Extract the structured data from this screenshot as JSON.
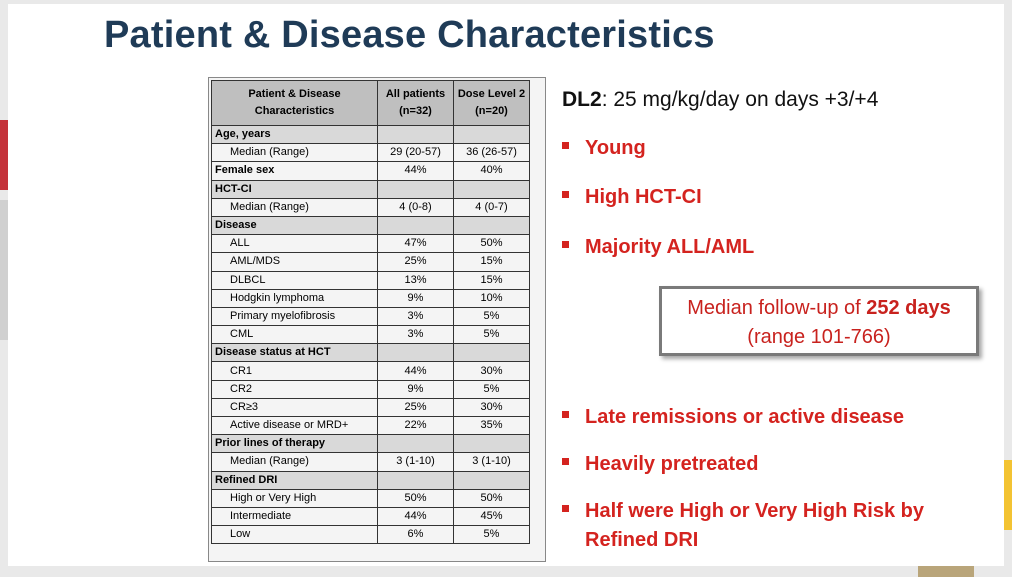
{
  "title": "Patient & Disease Characteristics",
  "table": {
    "headers": [
      "Patient & Disease Characteristics",
      "All patients (n=32)",
      "Dose Level 2 (n=20)"
    ],
    "rows": [
      {
        "type": "section",
        "label": "Age, years",
        "v1": "",
        "v2": ""
      },
      {
        "type": "sub",
        "label": "Median (Range)",
        "v1": "29 (20-57)",
        "v2": "36 (26-57)"
      },
      {
        "type": "boldrow",
        "label": "Female sex",
        "v1": "44%",
        "v2": "40%"
      },
      {
        "type": "section",
        "label": "HCT-CI",
        "v1": "",
        "v2": ""
      },
      {
        "type": "sub",
        "label": "Median (Range)",
        "v1": "4 (0-8)",
        "v2": "4 (0-7)"
      },
      {
        "type": "section",
        "label": "Disease",
        "v1": "",
        "v2": ""
      },
      {
        "type": "sub",
        "label": "ALL",
        "v1": "47%",
        "v2": "50%"
      },
      {
        "type": "sub",
        "label": "AML/MDS",
        "v1": "25%",
        "v2": "15%"
      },
      {
        "type": "sub",
        "label": "DLBCL",
        "v1": "13%",
        "v2": "15%"
      },
      {
        "type": "sub",
        "label": "Hodgkin lymphoma",
        "v1": "9%",
        "v2": "10%"
      },
      {
        "type": "sub",
        "label": "Primary myelofibrosis",
        "v1": "3%",
        "v2": "5%"
      },
      {
        "type": "sub",
        "label": "CML",
        "v1": "3%",
        "v2": "5%"
      },
      {
        "type": "section",
        "label": "Disease status at HCT",
        "v1": "",
        "v2": ""
      },
      {
        "type": "sub",
        "label": "CR1",
        "v1": "44%",
        "v2": "30%"
      },
      {
        "type": "sub",
        "label": "CR2",
        "v1": "9%",
        "v2": "5%"
      },
      {
        "type": "sub",
        "label": "CR≥3",
        "v1": "25%",
        "v2": "30%"
      },
      {
        "type": "sub",
        "label": "Active disease or MRD+",
        "v1": "22%",
        "v2": "35%"
      },
      {
        "type": "section",
        "label": "Prior lines of therapy",
        "v1": "",
        "v2": ""
      },
      {
        "type": "sub",
        "label": "Median (Range)",
        "v1": "3 (1-10)",
        "v2": "3 (1-10)"
      },
      {
        "type": "section",
        "label": "Refined DRI",
        "v1": "",
        "v2": ""
      },
      {
        "type": "sub",
        "label": "High or Very High",
        "v1": "50%",
        "v2": "50%"
      },
      {
        "type": "sub",
        "label": "Intermediate",
        "v1": "44%",
        "v2": "45%"
      },
      {
        "type": "sub",
        "label": "Low",
        "v1": "6%",
        "v2": "5%"
      }
    ]
  },
  "dl2": {
    "label": "DL2",
    "text": ": 25 mg/kg/day on days +3/+4"
  },
  "bullets_top": [
    "Young",
    "High HCT-CI",
    "Majority ALL/AML"
  ],
  "callout": {
    "pre": "Median follow-up of ",
    "bold": "252 days",
    "line2": "(range 101-766)"
  },
  "bullets_bottom": [
    "Late remissions or active disease",
    "Heavily pretreated",
    "Half were High or Very High Risk by",
    "Refined DRI"
  ],
  "colors": {
    "title": "#1f3b57",
    "accent_red": "#d4231f",
    "header_gray": "#bfbfbf",
    "section_gray": "#d9d9d9"
  }
}
